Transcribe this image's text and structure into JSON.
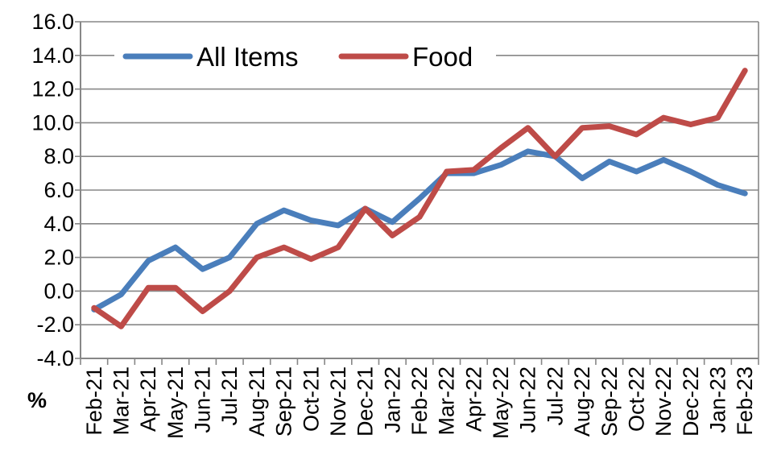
{
  "chart_data": {
    "type": "line",
    "categories": [
      "Feb-21",
      "Mar-21",
      "Apr-21",
      "May-21",
      "Jun-21",
      "Jul-21",
      "Aug-21",
      "Sep-21",
      "Oct-21",
      "Nov-21",
      "Dec-21",
      "Jan-22",
      "Feb-22",
      "Mar-22",
      "Apr-22",
      "May-22",
      "Jun-22",
      "Jul-22",
      "Aug-22",
      "Sep-22",
      "Oct-22",
      "Nov-22",
      "Dec-22",
      "Jan-23",
      "Feb-23"
    ],
    "series": [
      {
        "name": "All Items",
        "color": "#4a7ebb",
        "values": [
          -1.1,
          -0.2,
          1.8,
          2.6,
          1.3,
          2.0,
          4.0,
          4.8,
          4.2,
          3.9,
          4.9,
          4.1,
          5.5,
          7.0,
          7.0,
          7.5,
          8.3,
          8.0,
          6.7,
          7.7,
          7.1,
          7.8,
          7.1,
          6.3,
          5.8
        ]
      },
      {
        "name": "Food",
        "color": "#be4b48",
        "values": [
          -1.0,
          -2.1,
          0.2,
          0.2,
          -1.2,
          0.0,
          2.0,
          2.6,
          1.9,
          2.6,
          4.9,
          3.3,
          4.4,
          7.1,
          7.2,
          8.5,
          9.7,
          8.0,
          9.7,
          9.8,
          9.3,
          10.3,
          9.9,
          10.3,
          13.1
        ]
      }
    ],
    "yticks": [
      "16.0",
      "14.0",
      "12.0",
      "10.0",
      "8.0",
      "6.0",
      "4.0",
      "2.0",
      "0.0",
      "-2.0",
      "-4.0"
    ],
    "ylim": [
      -4,
      16
    ],
    "ylabel": "%",
    "grid": true,
    "legend_position": "top-left"
  }
}
